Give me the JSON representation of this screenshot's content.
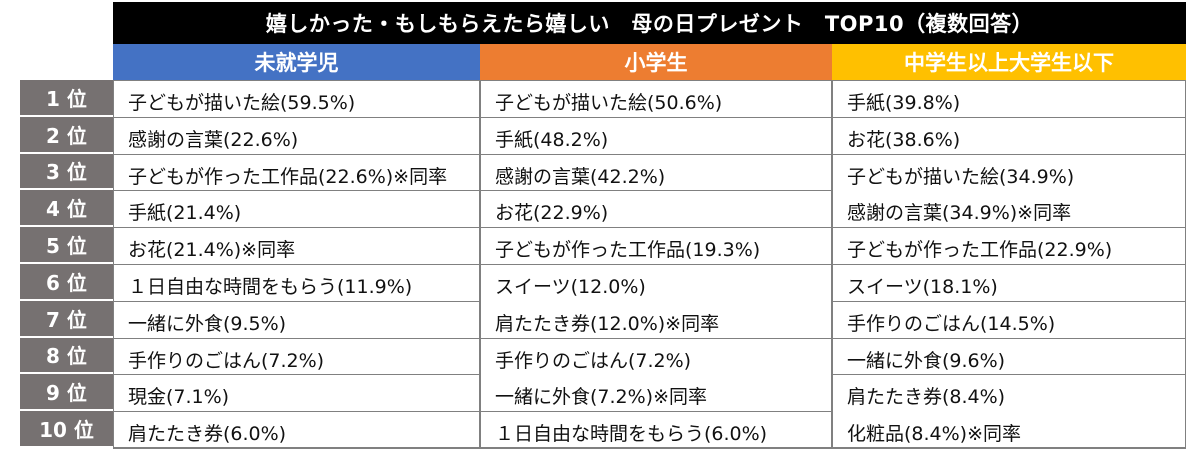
{
  "title": "嬉しかった・もしもらえたら嬉しい　母の日プレゼント　TOP10（複数回答）",
  "columns": [
    "未就学児",
    "小学生",
    "中学生以上大学生以下"
  ],
  "colors": {
    "title_bg": "#000000",
    "col1": "#4472c4",
    "col2": "#ed7d31",
    "col3": "#ffc000",
    "rank_bg": "#767171"
  },
  "ranks": [
    "1 位",
    "2 位",
    "3 位",
    "4 位",
    "5 位",
    "6 位",
    "7 位",
    "8 位",
    "9 位",
    "10 位"
  ],
  "preschool": [
    "子どもが描いた絵(59.5%)",
    "感謝の言葉(22.6%)",
    "子どもが作った工作品(22.6%)※同率",
    "手紙(21.4%)",
    "お花(21.4%)※同率",
    "１日自由な時間をもらう(11.9%)",
    "一緒に外食(9.5%)",
    "手作りのごはん(7.2%)",
    "現金(7.1%)",
    "肩たたき券(6.0%)"
  ],
  "elementary": [
    "子どもが描いた絵(50.6%)",
    "手紙(48.2%)",
    "感謝の言葉(42.2%)",
    "お花(22.9%)",
    "子どもが作った工作品(19.3%)",
    "スイーツ(12.0%)",
    "肩たたき券(12.0%)※同率",
    "手作りのごはん(7.2%)",
    "一緒に外食(7.2%)※同率",
    "１日自由な時間をもらう(6.0%)"
  ],
  "secondary": [
    "手紙(39.8%)",
    "お花(38.6%)",
    "子どもが描いた絵(34.9%)",
    "感謝の言葉(34.9%)※同率",
    "子どもが作った工作品(22.9%)",
    "スイーツ(18.1%)",
    "手作りのごはん(14.5%)",
    "一緒に外食(9.6%)",
    "肩たたき券(8.4%)",
    "化粧品(8.4%)※同率"
  ]
}
